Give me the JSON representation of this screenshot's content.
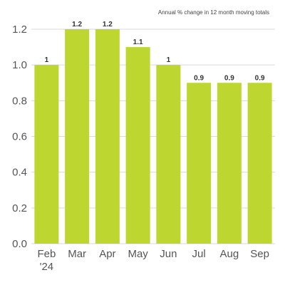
{
  "chart_data": {
    "type": "bar",
    "annotation": "Annual % change in 12 month moving totals",
    "categories": [
      "Feb",
      "Mar",
      "Apr",
      "May",
      "Jun",
      "Jul",
      "Aug",
      "Sep"
    ],
    "category_sublabels": [
      "'24",
      "",
      "",
      "",
      "",
      "",
      "",
      ""
    ],
    "values": [
      1.0,
      1.2,
      1.2,
      1.1,
      1.0,
      0.9,
      0.9,
      0.9
    ],
    "data_labels": [
      "1",
      "1.2",
      "1.2",
      "1.1",
      "1",
      "0.9",
      "0.9",
      "0.9"
    ],
    "yticks": [
      "0.0",
      "0.2",
      "0.4",
      "0.6",
      "0.8",
      "1.0",
      "1.2"
    ],
    "ylim": [
      0,
      1.2
    ],
    "grid": true,
    "bar_color": "#bed630",
    "grid_color": "#d9d9d9"
  }
}
